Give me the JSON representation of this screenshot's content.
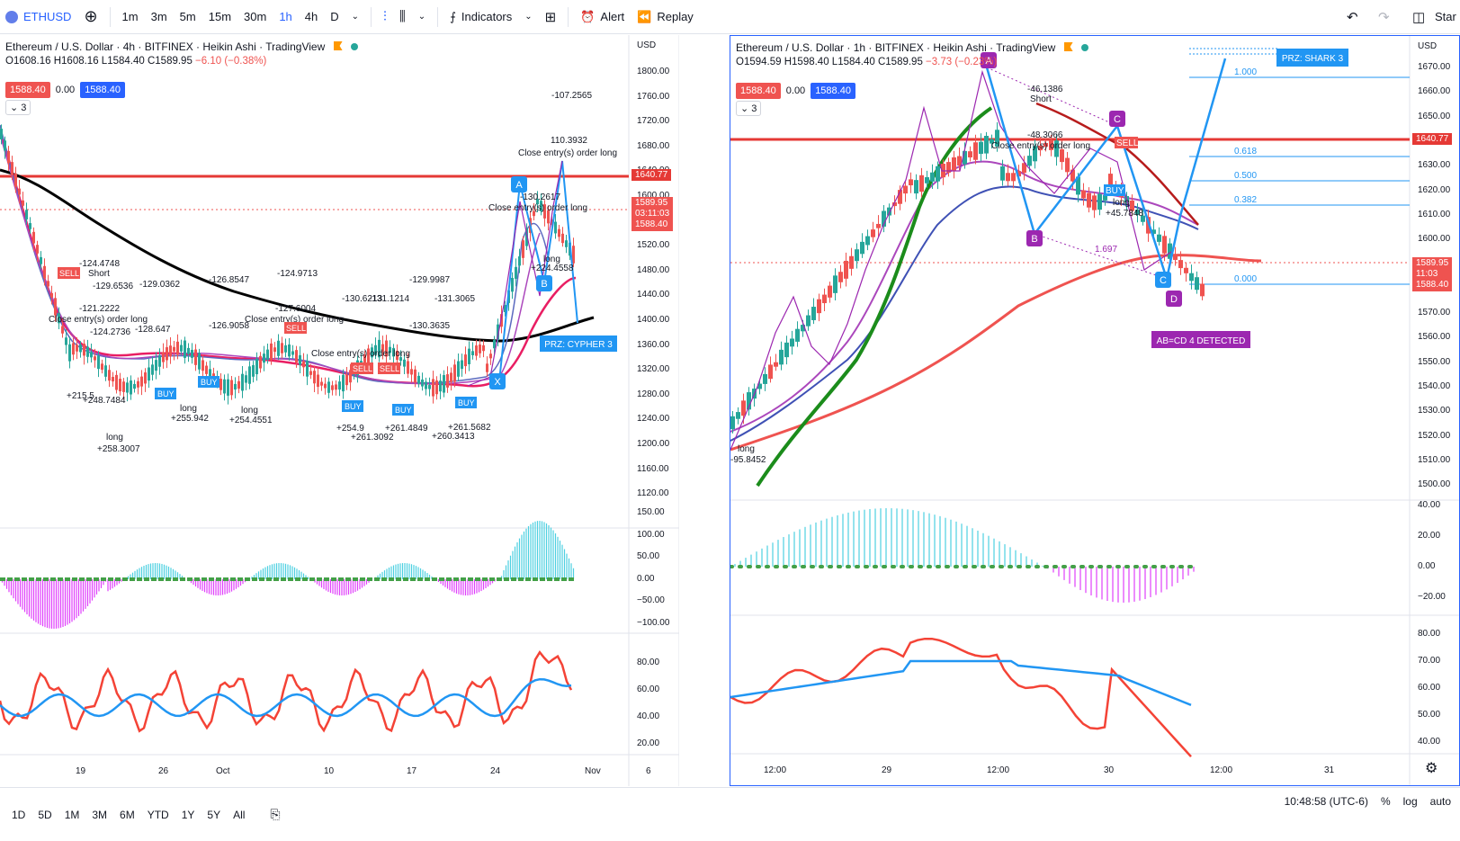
{
  "toolbar": {
    "symbol": "ETHUSD",
    "timeframes": [
      "1m",
      "3m",
      "5m",
      "15m",
      "30m",
      "1h",
      "4h",
      "D"
    ],
    "active_timeframe": "1h",
    "indicators_label": "Indicators",
    "alert_label": "Alert",
    "replay_label": "Replay",
    "start_label": "Star"
  },
  "left_chart": {
    "title": "Ethereum / U.S. Dollar · 4h · BITFINEX · Heikin Ashi · TradingView",
    "ohlc": {
      "o": "O1608.16",
      "h": "H1608.16",
      "l": "L1584.40",
      "c": "C1589.95",
      "chg": "−6.10 (−0.38%)"
    },
    "badge_sell": "1588.40",
    "badge_spread": "0.00",
    "badge_buy": "1588.40",
    "collapse_count": "3",
    "currency": "USD",
    "price_ticks": [
      "1800.00",
      "1760.00",
      "1720.00",
      "1680.00",
      "1640.00",
      "1600.00",
      "1560.00",
      "1520.00",
      "1480.00",
      "1440.00",
      "1400.00",
      "1360.00",
      "1320.00",
      "1280.00",
      "1240.00",
      "1200.00",
      "1160.00",
      "1120.00"
    ],
    "price_tag_red": "1640.77",
    "price_tag_last": "1589.95",
    "price_tag_timer": "03:11:03",
    "price_tag_bid": "1588.40",
    "osc_ticks": [
      "150.00",
      "100.00",
      "50.00",
      "0.00",
      "−50.00",
      "−100.00"
    ],
    "rsi_ticks": [
      "80.00",
      "60.00",
      "40.00",
      "20.00"
    ],
    "time_ticks": [
      "19",
      "26",
      "Oct",
      "10",
      "17",
      "24",
      "Nov",
      "6"
    ],
    "prz_label": "PRZ: CYPHER 3",
    "pattern_points": [
      "A",
      "B",
      "X"
    ],
    "annotations": [
      {
        "t": "-124.4748"
      },
      {
        "t": "Short"
      },
      {
        "t": "-129.6536"
      },
      {
        "t": "-129.0362"
      },
      {
        "t": "-126.8547"
      },
      {
        "t": "-124.9713"
      },
      {
        "t": "-121.2222"
      },
      {
        "t": "-127.6004"
      },
      {
        "t": "-130.6213"
      },
      {
        "t": "-131.1214"
      },
      {
        "t": "-129.9987"
      },
      {
        "t": "-131.3065"
      },
      {
        "t": "-124.2736"
      },
      {
        "t": "-128.647"
      },
      {
        "t": "-126.9058"
      },
      {
        "t": "-130.3635"
      },
      {
        "t": "-107.2565"
      },
      {
        "t": "110.3932"
      },
      {
        "t": "-130.2617"
      },
      {
        "t": "+215.5"
      },
      {
        "t": "+248.7484"
      },
      {
        "t": "+258.3007"
      },
      {
        "t": "+255.942"
      },
      {
        "t": "+254.4551"
      },
      {
        "t": "+254.9"
      },
      {
        "t": "+261.3092"
      },
      {
        "t": "+261.4849"
      },
      {
        "t": "+260.3413"
      },
      {
        "t": "+261.5682"
      },
      {
        "t": "+224.4558"
      },
      {
        "t": "Close entry(s) order long"
      },
      {
        "t": "long"
      },
      {
        "t": "BUY"
      },
      {
        "t": "SELL"
      }
    ]
  },
  "right_chart": {
    "title": "Ethereum / U.S. Dollar · 1h · BITFINEX · Heikin Ashi · TradingView",
    "ohlc": {
      "o": "O1594.59",
      "h": "H1598.40",
      "l": "L1584.40",
      "c": "C1589.95",
      "chg": "−3.73 (−0.23%)"
    },
    "badge_sell": "1588.40",
    "badge_spread": "0.00",
    "badge_buy": "1588.40",
    "collapse_count": "3",
    "currency": "USD",
    "price_ticks": [
      "1670.00",
      "1660.00",
      "1650.00",
      "1640.00",
      "1630.00",
      "1620.00",
      "1610.00",
      "1600.00",
      "1590.00",
      "1580.00",
      "1570.00",
      "1560.00",
      "1550.00",
      "1540.00",
      "1530.00",
      "1520.00",
      "1510.00",
      "1500.00"
    ],
    "price_tag_red": "1640.77",
    "price_tag_last": "1589.95",
    "price_tag_timer": "11:03",
    "price_tag_bid": "1588.40",
    "osc_ticks": [
      "40.00",
      "20.00",
      "0.00",
      "−20.00"
    ],
    "rsi_ticks": [
      "80.00",
      "70.00",
      "60.00",
      "50.00",
      "40.00"
    ],
    "time_ticks": [
      "12:00",
      "29",
      "12:00",
      "30",
      "12:00",
      "31"
    ],
    "prz_label": "PRZ: SHARK 3",
    "abcd_label": "AB=CD 4 DETECTED",
    "fib_levels": [
      "1.000",
      "0.618",
      "0.500",
      "0.382",
      "0.000"
    ],
    "fib_ratio": "1.697",
    "pattern_points": [
      "A",
      "B",
      "C",
      "C",
      "D"
    ],
    "annotations": [
      {
        "t": "-46.1386"
      },
      {
        "t": "Short"
      },
      {
        "t": "-48.3066"
      },
      {
        "t": "Close entry(s) order long"
      },
      {
        "t": "long"
      },
      {
        "t": "+45.7848"
      },
      {
        "t": "-95.8452"
      },
      {
        "t": "SELL"
      },
      {
        "t": "BUY"
      }
    ]
  },
  "bottombar": {
    "ranges": [
      "1D",
      "5D",
      "1M",
      "3M",
      "6M",
      "YTD",
      "1Y",
      "5Y",
      "All"
    ],
    "clock": "10:48:58 (UTC-6)",
    "percent": "%",
    "log": "log",
    "auto": "auto"
  }
}
